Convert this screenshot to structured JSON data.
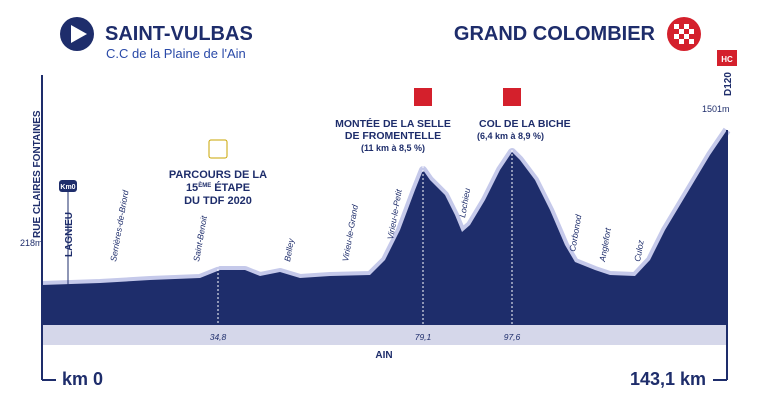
{
  "start": {
    "city": "SAINT-VULBAS",
    "subtitle": "C.C de la Plaine de l'Ain",
    "road": "RUE CLAIRES FONTAINES",
    "altitude": "218m",
    "km": "km 0",
    "badge": "Km0",
    "town": "LAGNIEU"
  },
  "finish": {
    "city": "GRAND COLOMBIER",
    "road": "D120",
    "altitude": "1501m",
    "km": "143,1 km",
    "badge": "HC"
  },
  "places": [
    "Serrières-de-Briord",
    "Saint-Benoit",
    "Belley",
    "Virieu-le-Grand",
    "Virieu-le-Petit",
    "Lochieu",
    "Corbonod",
    "Anglefort",
    "Culoz"
  ],
  "note": {
    "lines": [
      "PARCOURS DE LA",
      "15",
      "ÈME",
      "ÉTAPE",
      "DU TDF 2020"
    ],
    "km": "34,8"
  },
  "climbs": [
    {
      "name": [
        "MONTÉE DE LA SELLE",
        "DE FROMENTELLE"
      ],
      "detail": "(11 km à 8,5 %)",
      "km": "79,1"
    },
    {
      "name": [
        "COL DE LA BICHE"
      ],
      "detail": "(6,4 km à 8,9 %)",
      "km": "97,6"
    }
  ],
  "region": "AIN"
}
